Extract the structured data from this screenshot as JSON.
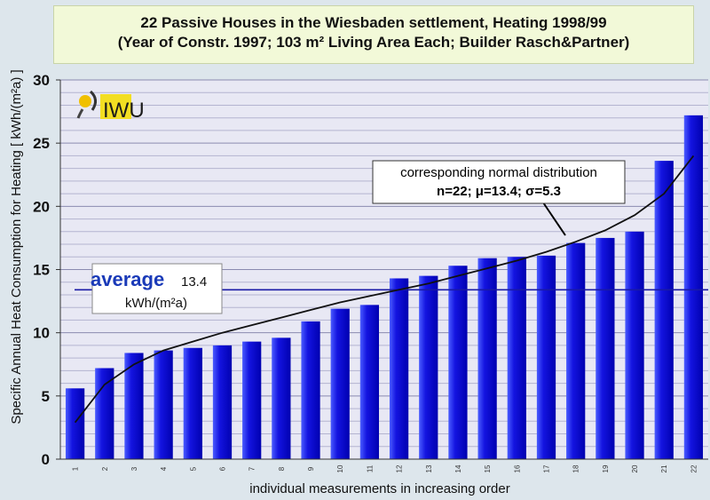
{
  "chart_data": {
    "type": "bar",
    "title": "22 Passive Houses in the Wiesbaden settlement, Heating 1998/99",
    "subtitle": "(Year of Constr. 1997; 103 m² Living Area Each; Builder Rasch&Partner)",
    "xlabel": "individual measurements in increasing order",
    "ylabel": "Specific Annual Heat Consumption for Heating [ kWh/(m²a) ]",
    "ylim": [
      0,
      30
    ],
    "yticks": [
      "0",
      "5",
      "10",
      "15",
      "20",
      "25",
      "30"
    ],
    "categories": [
      "1",
      "2",
      "3",
      "4",
      "5",
      "6",
      "7",
      "8",
      "9",
      "10",
      "11",
      "12",
      "13",
      "14",
      "15",
      "16",
      "17",
      "18",
      "19",
      "20",
      "21",
      "22"
    ],
    "values": [
      5.6,
      7.2,
      8.4,
      8.6,
      8.8,
      9.0,
      9.3,
      9.6,
      10.9,
      11.9,
      12.2,
      14.3,
      14.5,
      15.3,
      15.9,
      16.0,
      16.1,
      17.1,
      17.5,
      18.0,
      23.6,
      27.2
    ],
    "normal_curve": [
      2.9,
      5.9,
      7.5,
      8.6,
      9.3,
      10.0,
      10.6,
      11.2,
      11.8,
      12.4,
      12.9,
      13.4,
      13.9,
      14.5,
      15.1,
      15.7,
      16.4,
      17.2,
      18.1,
      19.3,
      21.0,
      24.0
    ],
    "average": {
      "label": "average",
      "value": "13.4",
      "unit": "kWh/(m²a)",
      "line_value": 13.4
    },
    "annotation": {
      "line1": "corresponding normal distribution",
      "line2": "n=22; μ=13.4; σ=5.3"
    },
    "logo_text": "IWU",
    "colors": {
      "bar": "#0000cc",
      "bar_light": "#3a4dff",
      "curve": "#000000",
      "average_line": "#1a1aa6",
      "average_text": "#1a3ab8",
      "plot_bg": "#e8e8f4"
    }
  }
}
